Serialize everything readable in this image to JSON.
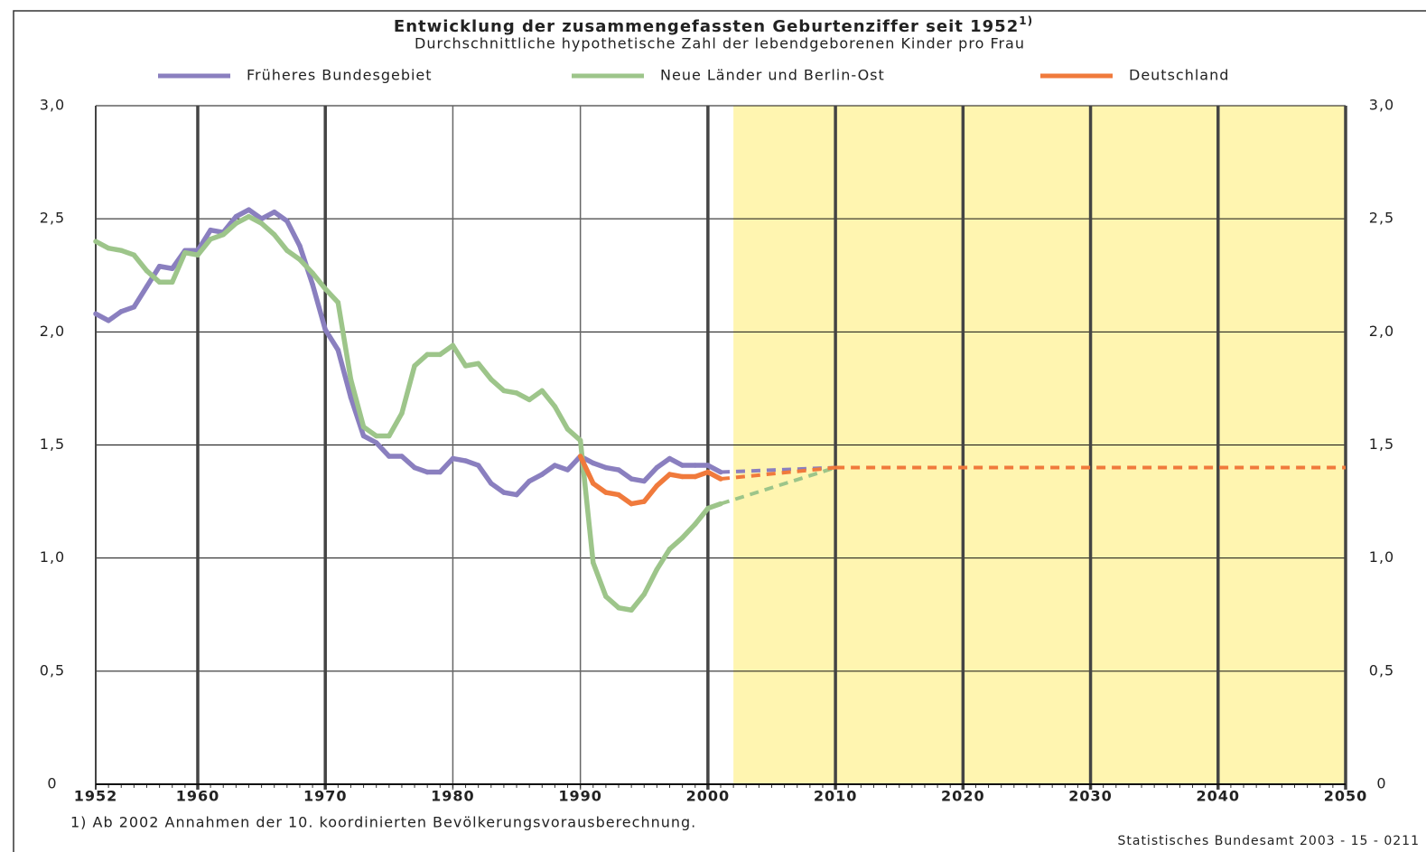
{
  "chart_data": {
    "type": "line",
    "title": "Entwicklung der zusammengefassten Geburtenziffer seit 1952",
    "title_note": "1)",
    "subtitle": "Durchschnittliche hypothetische Zahl der lebendgeborenen Kinder pro Frau",
    "footnote": "1) Ab 2002 Annahmen der 10. koordinierten Bevölkerungsvorausberechnung.",
    "source": "Statistisches Bundesamt 2003 - 15 - 0211",
    "x": [
      1952,
      1953,
      1954,
      1955,
      1956,
      1957,
      1958,
      1959,
      1960,
      1961,
      1962,
      1963,
      1964,
      1965,
      1966,
      1967,
      1968,
      1969,
      1970,
      1971,
      1972,
      1973,
      1974,
      1975,
      1976,
      1977,
      1978,
      1979,
      1980,
      1981,
      1982,
      1983,
      1984,
      1985,
      1986,
      1987,
      1988,
      1989,
      1990,
      1991,
      1992,
      1993,
      1994,
      1995,
      1996,
      1997,
      1998,
      1999,
      2000,
      2001,
      2010,
      2050
    ],
    "series": [
      {
        "name": "Früheres Bundesgebiet",
        "color": "#8a7fbf",
        "values": [
          2.08,
          2.05,
          2.09,
          2.11,
          2.2,
          2.29,
          2.28,
          2.36,
          2.36,
          2.45,
          2.44,
          2.51,
          2.54,
          2.5,
          2.53,
          2.49,
          2.38,
          2.21,
          2.01,
          1.92,
          1.71,
          1.54,
          1.51,
          1.45,
          1.45,
          1.4,
          1.38,
          1.38,
          1.44,
          1.43,
          1.41,
          1.33,
          1.29,
          1.28,
          1.34,
          1.37,
          1.41,
          1.39,
          1.45,
          1.42,
          1.4,
          1.39,
          1.35,
          1.34,
          1.4,
          1.44,
          1.41,
          1.41,
          1.41,
          1.38,
          1.4,
          null
        ]
      },
      {
        "name": "Neue Länder und Berlin-Ost",
        "color": "#9dc58a",
        "values": [
          2.4,
          2.37,
          2.36,
          2.34,
          2.27,
          2.22,
          2.22,
          2.35,
          2.34,
          2.41,
          2.43,
          2.48,
          2.51,
          2.48,
          2.43,
          2.36,
          2.32,
          2.26,
          2.19,
          2.13,
          1.79,
          1.58,
          1.54,
          1.54,
          1.64,
          1.85,
          1.9,
          1.9,
          1.94,
          1.85,
          1.86,
          1.79,
          1.74,
          1.73,
          1.7,
          1.74,
          1.67,
          1.57,
          1.52,
          0.98,
          0.83,
          0.78,
          0.77,
          0.84,
          0.95,
          1.04,
          1.09,
          1.15,
          1.22,
          1.24,
          1.4,
          null
        ]
      },
      {
        "name": "Deutschland",
        "color": "#f07a3c",
        "values": [
          null,
          null,
          null,
          null,
          null,
          null,
          null,
          null,
          null,
          null,
          null,
          null,
          null,
          null,
          null,
          null,
          null,
          null,
          null,
          null,
          null,
          null,
          null,
          null,
          null,
          null,
          null,
          null,
          null,
          null,
          null,
          null,
          null,
          null,
          null,
          null,
          null,
          null,
          1.45,
          1.33,
          1.29,
          1.28,
          1.24,
          1.25,
          1.32,
          1.37,
          1.36,
          1.36,
          1.38,
          1.35,
          1.4,
          1.4
        ]
      }
    ],
    "projection_from": 2002,
    "projection_color": "#fff5b0",
    "xlim": [
      1952,
      2050
    ],
    "xticks": [
      1952,
      1960,
      1970,
      1980,
      1990,
      2000,
      2010,
      2020,
      2030,
      2040,
      2050
    ],
    "ylim": [
      0,
      3
    ],
    "yticks": [
      0,
      {
        "value": 0.5,
        "label": "0,5"
      },
      {
        "value": 1,
        "label": "1,0"
      },
      {
        "value": 1.5,
        "label": "1,5"
      },
      {
        "value": 2,
        "label": "2,0"
      },
      {
        "value": 2.5,
        "label": "2,5"
      },
      {
        "value": 3,
        "label": "3,0"
      }
    ],
    "grid": true,
    "legend": "top"
  }
}
